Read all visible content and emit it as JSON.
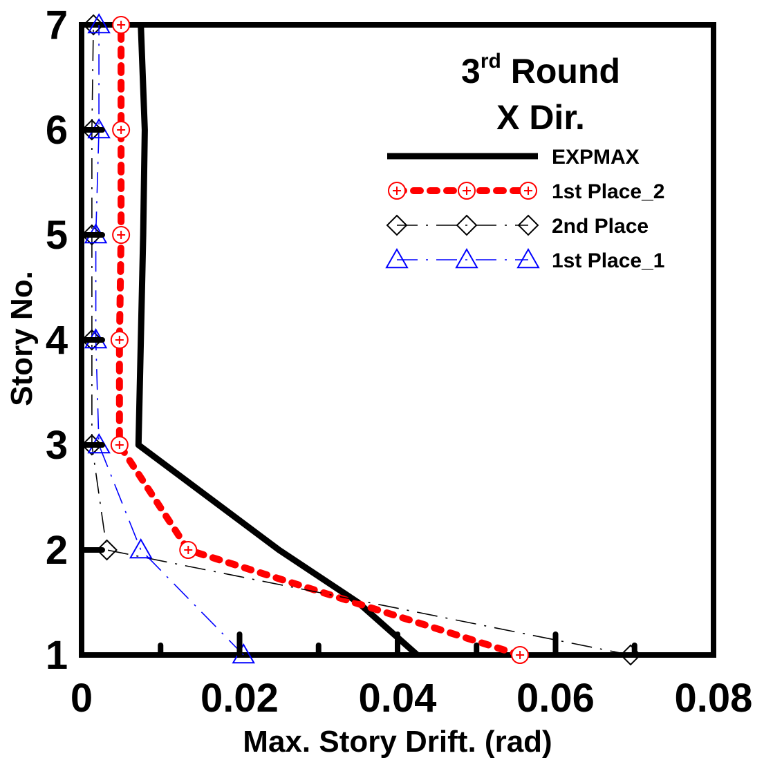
{
  "chart_data": {
    "type": "line",
    "title_line1_main": "3",
    "title_line1_sup": "rd",
    "title_line1_rest": " Round",
    "title_line2": "X Dir.",
    "xlabel": "Max. Story Drift. (rad)",
    "ylabel": "Story No.",
    "xlim": [
      0,
      0.08
    ],
    "ylim": [
      1,
      7
    ],
    "x_ticks": [
      "0",
      "0.02",
      "0.04",
      "0.06",
      "0.08"
    ],
    "y_ticks": [
      "1",
      "2",
      "3",
      "4",
      "5",
      "6",
      "7"
    ],
    "grid": false,
    "legend_position": "top-right",
    "series": [
      {
        "name": "EXPMAX",
        "color": "#000000",
        "style": "solid-thick",
        "marker": "none",
        "points": [
          [
            0.0425,
            1
          ],
          [
            0.035,
            1.5
          ],
          [
            0.025,
            2
          ],
          [
            0.0072,
            3
          ],
          [
            0.0075,
            4
          ],
          [
            0.0078,
            5
          ],
          [
            0.008,
            6
          ],
          [
            0.0075,
            7
          ]
        ]
      },
      {
        "name": "1st Place_2",
        "color": "#ff0000",
        "style": "dotted-thick",
        "marker": "circle-plus",
        "points": [
          [
            0.0555,
            1
          ],
          [
            0.0135,
            2
          ],
          [
            0.0048,
            3
          ],
          [
            0.0048,
            4
          ],
          [
            0.005,
            5
          ],
          [
            0.005,
            6
          ],
          [
            0.005,
            7
          ]
        ]
      },
      {
        "name": "2nd Place",
        "color": "#000000",
        "style": "dash-dot",
        "marker": "diamond",
        "points": [
          [
            0.0695,
            1
          ],
          [
            0.0032,
            2
          ],
          [
            0.0013,
            3
          ],
          [
            0.0013,
            4
          ],
          [
            0.0013,
            5
          ],
          [
            0.0013,
            6
          ],
          [
            0.0015,
            7
          ]
        ]
      },
      {
        "name": "1st Place_1",
        "color": "#0000ff",
        "style": "dash-dot",
        "marker": "triangle",
        "points": [
          [
            0.0205,
            1
          ],
          [
            0.0075,
            2
          ],
          [
            0.0022,
            3
          ],
          [
            0.0018,
            4
          ],
          [
            0.0018,
            5
          ],
          [
            0.0022,
            6
          ],
          [
            0.0022,
            7
          ]
        ]
      }
    ]
  }
}
